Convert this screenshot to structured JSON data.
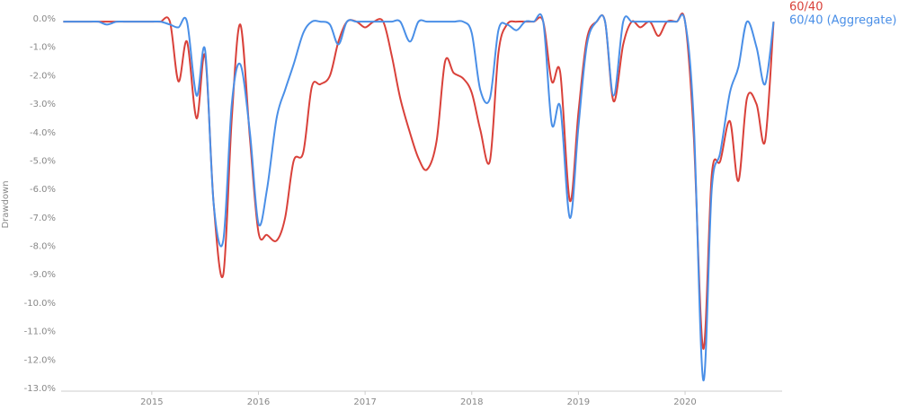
{
  "chart_data": {
    "type": "line",
    "y_label": "Drawdown",
    "x": [
      2014.17,
      2014.25,
      2014.33,
      2014.42,
      2014.5,
      2014.58,
      2014.67,
      2014.75,
      2014.83,
      2014.92,
      2015.0,
      2015.08,
      2015.17,
      2015.25,
      2015.33,
      2015.42,
      2015.5,
      2015.58,
      2015.67,
      2015.75,
      2015.83,
      2015.92,
      2016.0,
      2016.08,
      2016.17,
      2016.25,
      2016.33,
      2016.42,
      2016.5,
      2016.58,
      2016.67,
      2016.75,
      2016.83,
      2016.92,
      2017.0,
      2017.08,
      2017.17,
      2017.25,
      2017.33,
      2017.42,
      2017.5,
      2017.58,
      2017.67,
      2017.75,
      2017.83,
      2017.92,
      2018.0,
      2018.08,
      2018.17,
      2018.25,
      2018.33,
      2018.42,
      2018.5,
      2018.58,
      2018.67,
      2018.75,
      2018.83,
      2018.92,
      2019.0,
      2019.08,
      2019.17,
      2019.25,
      2019.33,
      2019.42,
      2019.5,
      2019.58,
      2019.67,
      2019.75,
      2019.83,
      2019.92,
      2020.0,
      2020.08,
      2020.17,
      2020.25,
      2020.33,
      2020.42,
      2020.5,
      2020.58,
      2020.67,
      2020.75,
      2020.83
    ],
    "series": [
      {
        "name": "60/40",
        "color": "#d9413a",
        "values": [
          -0.1,
          -0.1,
          -0.1,
          -0.1,
          -0.1,
          -0.1,
          -0.1,
          -0.1,
          -0.1,
          -0.1,
          -0.1,
          -0.1,
          -0.1,
          -2.2,
          -0.8,
          -3.5,
          -1.3,
          -6.5,
          -9.0,
          -3.5,
          -0.2,
          -4.2,
          -7.5,
          -7.6,
          -7.8,
          -7.0,
          -5.0,
          -4.7,
          -2.4,
          -2.3,
          -2.0,
          -0.8,
          -0.1,
          -0.1,
          -0.3,
          -0.1,
          -0.1,
          -1.3,
          -2.8,
          -4.0,
          -4.9,
          -5.3,
          -4.3,
          -1.5,
          -1.9,
          -2.1,
          -2.6,
          -3.9,
          -5.0,
          -1.2,
          -0.2,
          -0.1,
          -0.1,
          -0.1,
          -0.1,
          -2.2,
          -1.9,
          -6.4,
          -3.3,
          -0.7,
          -0.1,
          -0.1,
          -2.9,
          -0.9,
          -0.1,
          -0.3,
          -0.1,
          -0.6,
          -0.1,
          -0.1,
          -0.1,
          -4.0,
          -11.6,
          -5.5,
          -5.0,
          -3.6,
          -5.7,
          -2.8,
          -3.0,
          -4.3,
          -0.1
        ]
      },
      {
        "name": "60/40 (Aggregate)",
        "color": "#4a8fe7",
        "values": [
          -0.1,
          -0.1,
          -0.1,
          -0.1,
          -0.1,
          -0.2,
          -0.1,
          -0.1,
          -0.1,
          -0.1,
          -0.1,
          -0.1,
          -0.2,
          -0.3,
          -0.1,
          -2.7,
          -1.1,
          -6.5,
          -7.8,
          -3.0,
          -1.6,
          -4.0,
          -7.2,
          -6.0,
          -3.5,
          -2.5,
          -1.6,
          -0.5,
          -0.1,
          -0.1,
          -0.2,
          -0.9,
          -0.1,
          -0.1,
          -0.1,
          -0.1,
          -0.1,
          -0.1,
          -0.1,
          -0.8,
          -0.1,
          -0.1,
          -0.1,
          -0.1,
          -0.1,
          -0.1,
          -0.5,
          -2.5,
          -2.8,
          -0.4,
          -0.2,
          -0.4,
          -0.1,
          -0.1,
          -0.1,
          -3.7,
          -3.1,
          -7.0,
          -3.8,
          -0.9,
          -0.1,
          -0.1,
          -2.7,
          -0.1,
          -0.1,
          -0.1,
          -0.1,
          -0.1,
          -0.1,
          -0.1,
          -0.1,
          -3.5,
          -12.7,
          -6.0,
          -4.7,
          -2.6,
          -1.7,
          -0.1,
          -1.0,
          -2.3,
          -0.1
        ]
      }
    ],
    "xlim": [
      2014.15,
      2020.91
    ],
    "xticks": [
      2015,
      2016,
      2017,
      2018,
      2019,
      2020
    ],
    "ylim": [
      -13,
      0
    ],
    "yticks": [
      {
        "value": 0,
        "label": "0.0%"
      },
      {
        "value": -1,
        "label": "-1.0%"
      },
      {
        "value": -2,
        "label": "-2.0%"
      },
      {
        "value": -3,
        "label": "-3.0%"
      },
      {
        "value": -4,
        "label": "-4.0%"
      },
      {
        "value": -5,
        "label": "-5.0%"
      },
      {
        "value": -6,
        "label": "-6.0%"
      },
      {
        "value": -7,
        "label": "-7.0%"
      },
      {
        "value": -8,
        "label": "-8.0%"
      },
      {
        "value": -9,
        "label": "-9.0%"
      },
      {
        "value": -10,
        "label": "-10.0%"
      },
      {
        "value": -11,
        "label": "-11.0%"
      },
      {
        "value": -12,
        "label": "-12.0%"
      },
      {
        "value": -13,
        "label": "-13.0%"
      }
    ],
    "grid": false,
    "legend": "top-right"
  }
}
